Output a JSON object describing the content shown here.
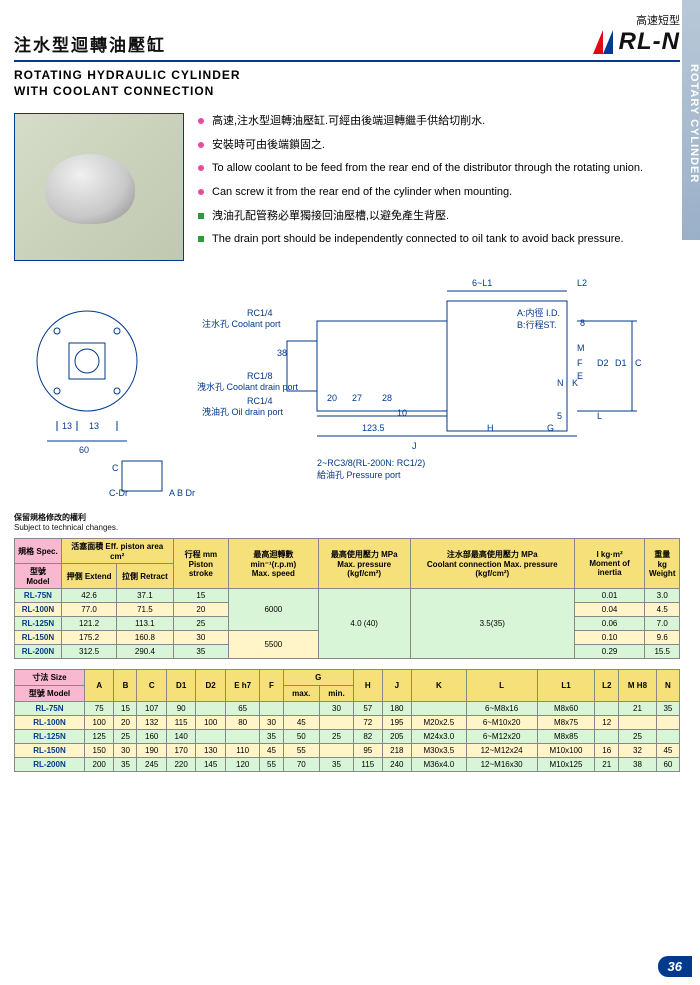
{
  "sideTab": "ROTARY CYLINDER",
  "cnTitle": "注水型迴轉油壓缸",
  "subtitleCn": "高速短型",
  "model": "RL-N",
  "enTitle1": "ROTATING  HYDRAULIC  CYLINDER",
  "enTitle2": "WITH COOLANT CONNECTION",
  "bullets": [
    {
      "cls": "pink",
      "t": "高速,注水型迴轉油壓缸.可經由後端迴轉繼手供給切削水."
    },
    {
      "cls": "pink",
      "t": "安裝時可由後端鎖固之."
    },
    {
      "cls": "pink",
      "t": "To allow coolant to be feed from the rear end of the distributor through the rotating union."
    },
    {
      "cls": "pink",
      "t": "Can screw it from the rear end of the cylinder when mounting."
    },
    {
      "cls": "green",
      "t": "洩油孔配管務必單獨接回油壓槽,以避免產生背壓."
    },
    {
      "cls": "green",
      "t": "The drain port should be independently connected to oil tank to avoid back pressure."
    }
  ],
  "diagLabels": {
    "coolant": "注水孔 Coolant port",
    "coolantDrain": "洩水孔 Coolant drain port",
    "oilDrain": "洩油孔 Oil drain port",
    "rc14": "RC1/4",
    "rc18": "RC1/8",
    "l38": "38",
    "d13": "13",
    "d60": "60",
    "pressure": "給油孔 Pressure port",
    "pressureSpec": "2~RC3/8(RL-200N: RC1/2)",
    "aid": "A:内徑 I.D.",
    "bst": "B:行程ST.",
    "l6l1": "6~L1",
    "l2": "L2",
    "d20": "20",
    "d27": "27",
    "d28": "28",
    "d10": "10",
    "d1235": "123.5",
    "d5": "5",
    "d8": "8",
    "j": "J",
    "h": "H",
    "g": "G",
    "l": "L",
    "c": "C",
    "d1d": "D1",
    "d2d": "D2",
    "e": "E",
    "f": "F",
    "m": "M",
    "n": "N",
    "k": "K",
    "cdr": "C-Dr",
    "ab": "A  B",
    "dr": "Dr"
  },
  "diagNoteCn": "保留規格修改的權利",
  "diagNoteEn": "Subject to technical changes.",
  "t1": {
    "h": {
      "spec": "規格 Spec.",
      "area": "活塞面積  Eff. piston area  cm²",
      "stroke": "行程 mm",
      "speed": "最高迴轉數min⁻¹(r.p.m)",
      "maxp": "最高使用壓力 MPa",
      "coolp": "注水部最高使用壓力 MPa",
      "moi": "I   kg·m²",
      "wt": "重量  kg",
      "modelLbl": "型號 Model",
      "ext": "押側  Extend",
      "ret": "拉側  Retract",
      "strokeEn": "Piston stroke",
      "speedEn": "Max. speed",
      "maxpEn": "Max. pressure (kgf/cm²)",
      "coolpEn": "Coolant connection Max. pressure (kgf/cm²)",
      "moiEn": "Moment of inertia",
      "wtEn": "Weight"
    },
    "rows": [
      {
        "m": "RL-75N",
        "ext": "42.6",
        "ret": "37.1",
        "st": "15",
        "moi": "0.01",
        "wt": "3.0"
      },
      {
        "m": "RL-100N",
        "ext": "77.0",
        "ret": "71.5",
        "st": "20",
        "moi": "0.04",
        "wt": "4.5"
      },
      {
        "m": "RL-125N",
        "ext": "121.2",
        "ret": "113.1",
        "st": "25",
        "moi": "0.06",
        "wt": "7.0"
      },
      {
        "m": "RL-150N",
        "ext": "175.2",
        "ret": "160.8",
        "st": "30",
        "moi": "0.10",
        "wt": "9.6"
      },
      {
        "m": "RL-200N",
        "ext": "312.5",
        "ret": "290.4",
        "st": "35",
        "moi": "0.29",
        "wt": "15.5"
      }
    ],
    "speed1": "6000",
    "speed2": "5500",
    "maxp": "4.0 (40)",
    "coolp": "3.5(35)"
  },
  "t2": {
    "h": {
      "size": "寸法 Size",
      "model": "型號 Model",
      "cols": [
        "A",
        "B",
        "C",
        "D1",
        "D2",
        "E h7",
        "F",
        "G",
        "H",
        "J",
        "K",
        "L",
        "L1",
        "L2",
        "M H8",
        "N"
      ],
      "gmax": "max.",
      "gmin": "min."
    },
    "rows": [
      {
        "m": "RL-75N",
        "v": [
          "75",
          "15",
          "107",
          "90",
          "",
          "65",
          "",
          "",
          "30",
          "57",
          "180",
          "",
          "6~M8x16",
          "M8x60",
          "",
          "21",
          "35"
        ]
      },
      {
        "m": "RL-100N",
        "v": [
          "100",
          "20",
          "132",
          "115",
          "100",
          "80",
          "30",
          "45",
          "",
          "72",
          "195",
          "M20x2.5",
          "6~M10x20",
          "M8x75",
          "12",
          "",
          ""
        ]
      },
      {
        "m": "RL-125N",
        "v": [
          "125",
          "25",
          "160",
          "140",
          "",
          "",
          "35",
          "50",
          "25",
          "82",
          "205",
          "M24x3.0",
          "6~M12x20",
          "M8x85",
          "",
          "25",
          ""
        ]
      },
      {
        "m": "RL-150N",
        "v": [
          "150",
          "30",
          "190",
          "170",
          "130",
          "110",
          "45",
          "55",
          "",
          "95",
          "218",
          "M30x3.5",
          "12~M12x24",
          "M10x100",
          "16",
          "32",
          "45"
        ]
      },
      {
        "m": "RL-200N",
        "v": [
          "200",
          "35",
          "245",
          "220",
          "145",
          "120",
          "55",
          "70",
          "35",
          "115",
          "240",
          "M36x4.0",
          "12~M16x30",
          "M10x125",
          "21",
          "38",
          "60"
        ]
      }
    ]
  },
  "pageNum": "36"
}
